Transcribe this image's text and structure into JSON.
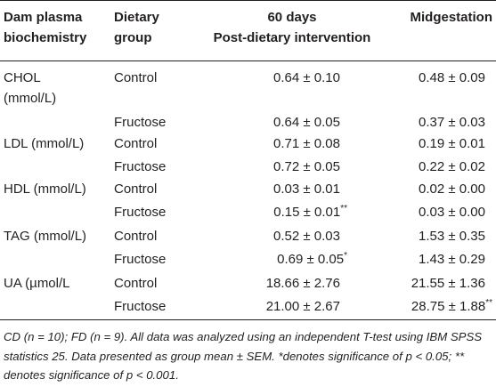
{
  "table": {
    "headers": {
      "col1_line1": "Dam plasma",
      "col1_line2": "biochemistry",
      "col2_line1": "Dietary",
      "col2_line2": "group",
      "col3_line1": "60 days",
      "col3_line2": "Post-dietary intervention",
      "col4": "Midgestation"
    },
    "rows": [
      {
        "analyte_line1": "CHOL",
        "analyte_line2": "(mmol/L)",
        "group": "Control",
        "v1": "0.64 ± 0.10",
        "v1_sup": "",
        "v2": "0.48 ± 0.09",
        "v2_sup": ""
      },
      {
        "analyte_line1": "",
        "analyte_line2": "",
        "group": "Fructose",
        "v1": "0.64 ± 0.05",
        "v1_sup": "",
        "v2": "0.37 ± 0.03",
        "v2_sup": ""
      },
      {
        "analyte_line1": "LDL (mmol/L)",
        "analyte_line2": "",
        "group": "Control",
        "v1": "0.71 ± 0.08",
        "v1_sup": "",
        "v2": "0.19 ± 0.01",
        "v2_sup": ""
      },
      {
        "analyte_line1": "",
        "analyte_line2": "",
        "group": "Fructose",
        "v1": "0.72 ± 0.05",
        "v1_sup": "",
        "v2": "0.22 ± 0.02",
        "v2_sup": ""
      },
      {
        "analyte_line1": "HDL (mmol/L)",
        "analyte_line2": "",
        "group": "Control",
        "v1": "0.03 ± 0.01",
        "v1_sup": "",
        "v2": "0.02 ± 0.00",
        "v2_sup": ""
      },
      {
        "analyte_line1": "",
        "analyte_line2": "",
        "group": "Fructose",
        "v1": "0.15 ± 0.01",
        "v1_sup": "**",
        "v2": "0.03 ± 0.00",
        "v2_sup": ""
      },
      {
        "analyte_line1": "TAG (mmol/L)",
        "analyte_line2": "",
        "group": "Control",
        "v1": "0.52 ± 0.03",
        "v1_sup": "",
        "v2": "1.53 ± 0.35",
        "v2_sup": ""
      },
      {
        "analyte_line1": "",
        "analyte_line2": "",
        "group": "Fructose",
        "v1": "0.69 ± 0.05",
        "v1_sup": "*",
        "v2": "1.43 ± 0.29",
        "v2_sup": ""
      },
      {
        "analyte_line1": "UA (µmol/L",
        "analyte_line2": "",
        "group": "Control",
        "v1": "18.66 ± 2.76",
        "v1_sup": "",
        "v2": "21.55 ± 1.36",
        "v2_sup": ""
      },
      {
        "analyte_line1": "",
        "analyte_line2": "",
        "group": "Fructose",
        "v1": "21.00 ± 2.67",
        "v1_sup": "",
        "v2": "28.75 ± 1.88",
        "v2_sup": "**"
      }
    ]
  },
  "footnote": "CD (n = 10); FD (n = 9). All data was analyzed using an independent T-test using IBM SPSS statistics 25. Data presented as group mean ± SEM. *denotes significance of p < 0.05; ** denotes significance of p < 0.001."
}
